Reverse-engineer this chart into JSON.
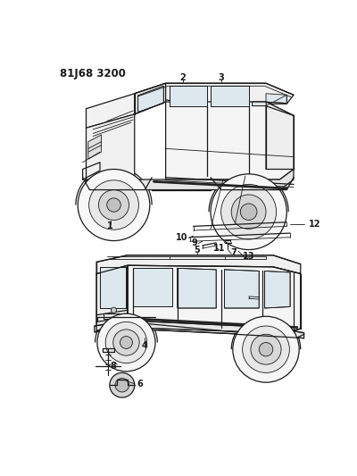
{
  "title_code": "81J68 3200",
  "bg_color": "#ffffff",
  "line_color": "#1a1a1a",
  "label_color": "#1a1a1a",
  "figsize": [
    4.0,
    5.33
  ],
  "dpi": 100,
  "label_fs": 7.0
}
